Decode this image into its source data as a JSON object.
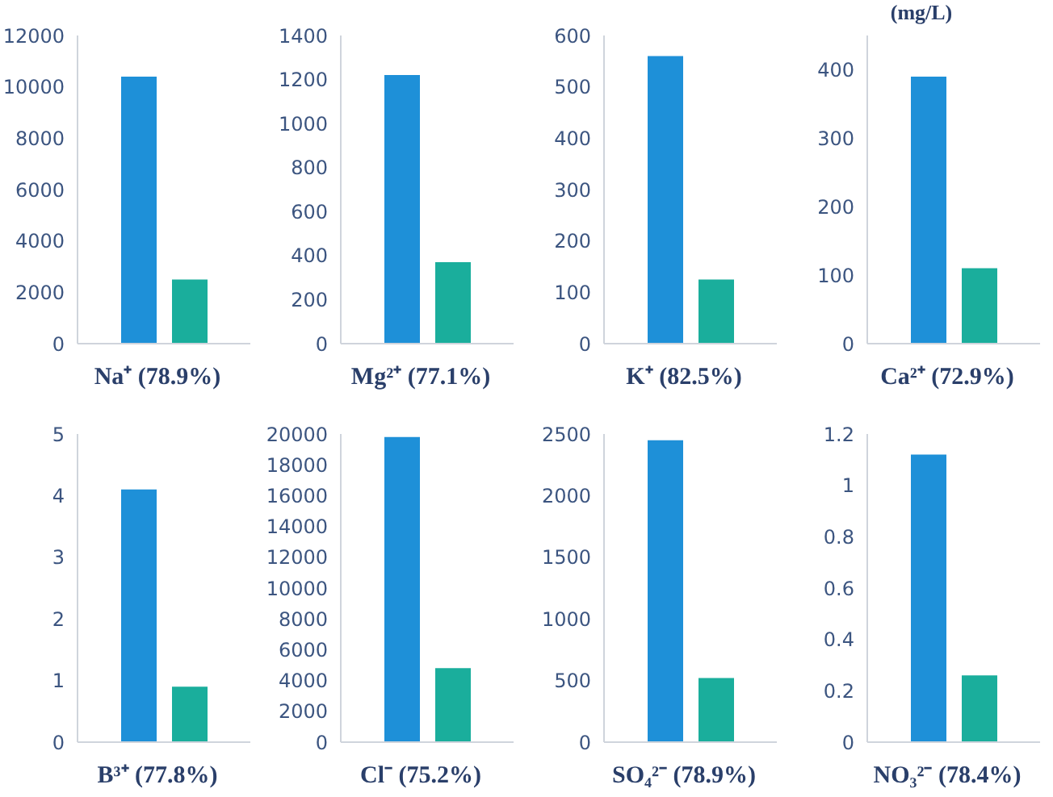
{
  "chart_data": [
    {
      "type": "bar",
      "xlabel": "Na⁺ (78.9%)",
      "categories": [
        null,
        null
      ],
      "values": [
        10400,
        2500
      ],
      "colors": [
        "#1e90d8",
        "#1aae9c"
      ],
      "ylim": [
        0,
        12000
      ],
      "yticks": [
        0,
        2000,
        4000,
        6000,
        8000,
        10000,
        12000
      ],
      "grid": false
    },
    {
      "type": "bar",
      "xlabel": "Mg²⁺ (77.1%)",
      "categories": [
        null,
        null
      ],
      "values": [
        1220,
        370
      ],
      "colors": [
        "#1e90d8",
        "#1aae9c"
      ],
      "ylim": [
        0,
        1400
      ],
      "yticks": [
        0,
        200,
        400,
        600,
        800,
        1000,
        1200,
        1400
      ],
      "grid": false
    },
    {
      "type": "bar",
      "xlabel": "K⁺ (82.5%)",
      "categories": [
        null,
        null
      ],
      "values": [
        560,
        125
      ],
      "colors": [
        "#1e90d8",
        "#1aae9c"
      ],
      "ylim": [
        0,
        600
      ],
      "yticks": [
        0,
        100,
        200,
        300,
        400,
        500,
        600
      ],
      "grid": false
    },
    {
      "type": "bar",
      "title": "(mg/L)",
      "xlabel": "Ca²⁺ (72.9%)",
      "categories": [
        null,
        null
      ],
      "values": [
        390,
        110
      ],
      "colors": [
        "#1e90d8",
        "#1aae9c"
      ],
      "ylim": [
        0,
        450
      ],
      "yticks": [
        0,
        100,
        200,
        300,
        400
      ],
      "grid": false
    },
    {
      "type": "bar",
      "xlabel": "B³⁺ (77.8%)",
      "categories": [
        null,
        null
      ],
      "values": [
        4.1,
        0.9
      ],
      "colors": [
        "#1e90d8",
        "#1aae9c"
      ],
      "ylim": [
        0,
        5
      ],
      "yticks": [
        0,
        1,
        2,
        3,
        4,
        5
      ],
      "grid": false
    },
    {
      "type": "bar",
      "xlabel": "Cl⁻ (75.2%)",
      "categories": [
        null,
        null
      ],
      "values": [
        19800,
        4800
      ],
      "colors": [
        "#1e90d8",
        "#1aae9c"
      ],
      "ylim": [
        0,
        20000
      ],
      "yticks": [
        0,
        2000,
        4000,
        6000,
        8000,
        10000,
        12000,
        14000,
        16000,
        18000,
        20000
      ],
      "grid": false
    },
    {
      "type": "bar",
      "xlabel": "SO₄²⁻ (78.9%)",
      "categories": [
        null,
        null
      ],
      "values": [
        2450,
        520
      ],
      "colors": [
        "#1e90d8",
        "#1aae9c"
      ],
      "ylim": [
        0,
        2500
      ],
      "yticks": [
        0,
        500,
        1000,
        1500,
        2000,
        2500
      ],
      "grid": false
    },
    {
      "type": "bar",
      "xlabel": "NO₃²⁻ (78.4%)",
      "categories": [
        null,
        null
      ],
      "values": [
        1.12,
        0.26
      ],
      "colors": [
        "#1e90d8",
        "#1aae9c"
      ],
      "ylim": [
        0,
        1.2
      ],
      "yticks": [
        0,
        0.2,
        0.4,
        0.6,
        0.8,
        1,
        1.2
      ],
      "grid": false
    }
  ]
}
